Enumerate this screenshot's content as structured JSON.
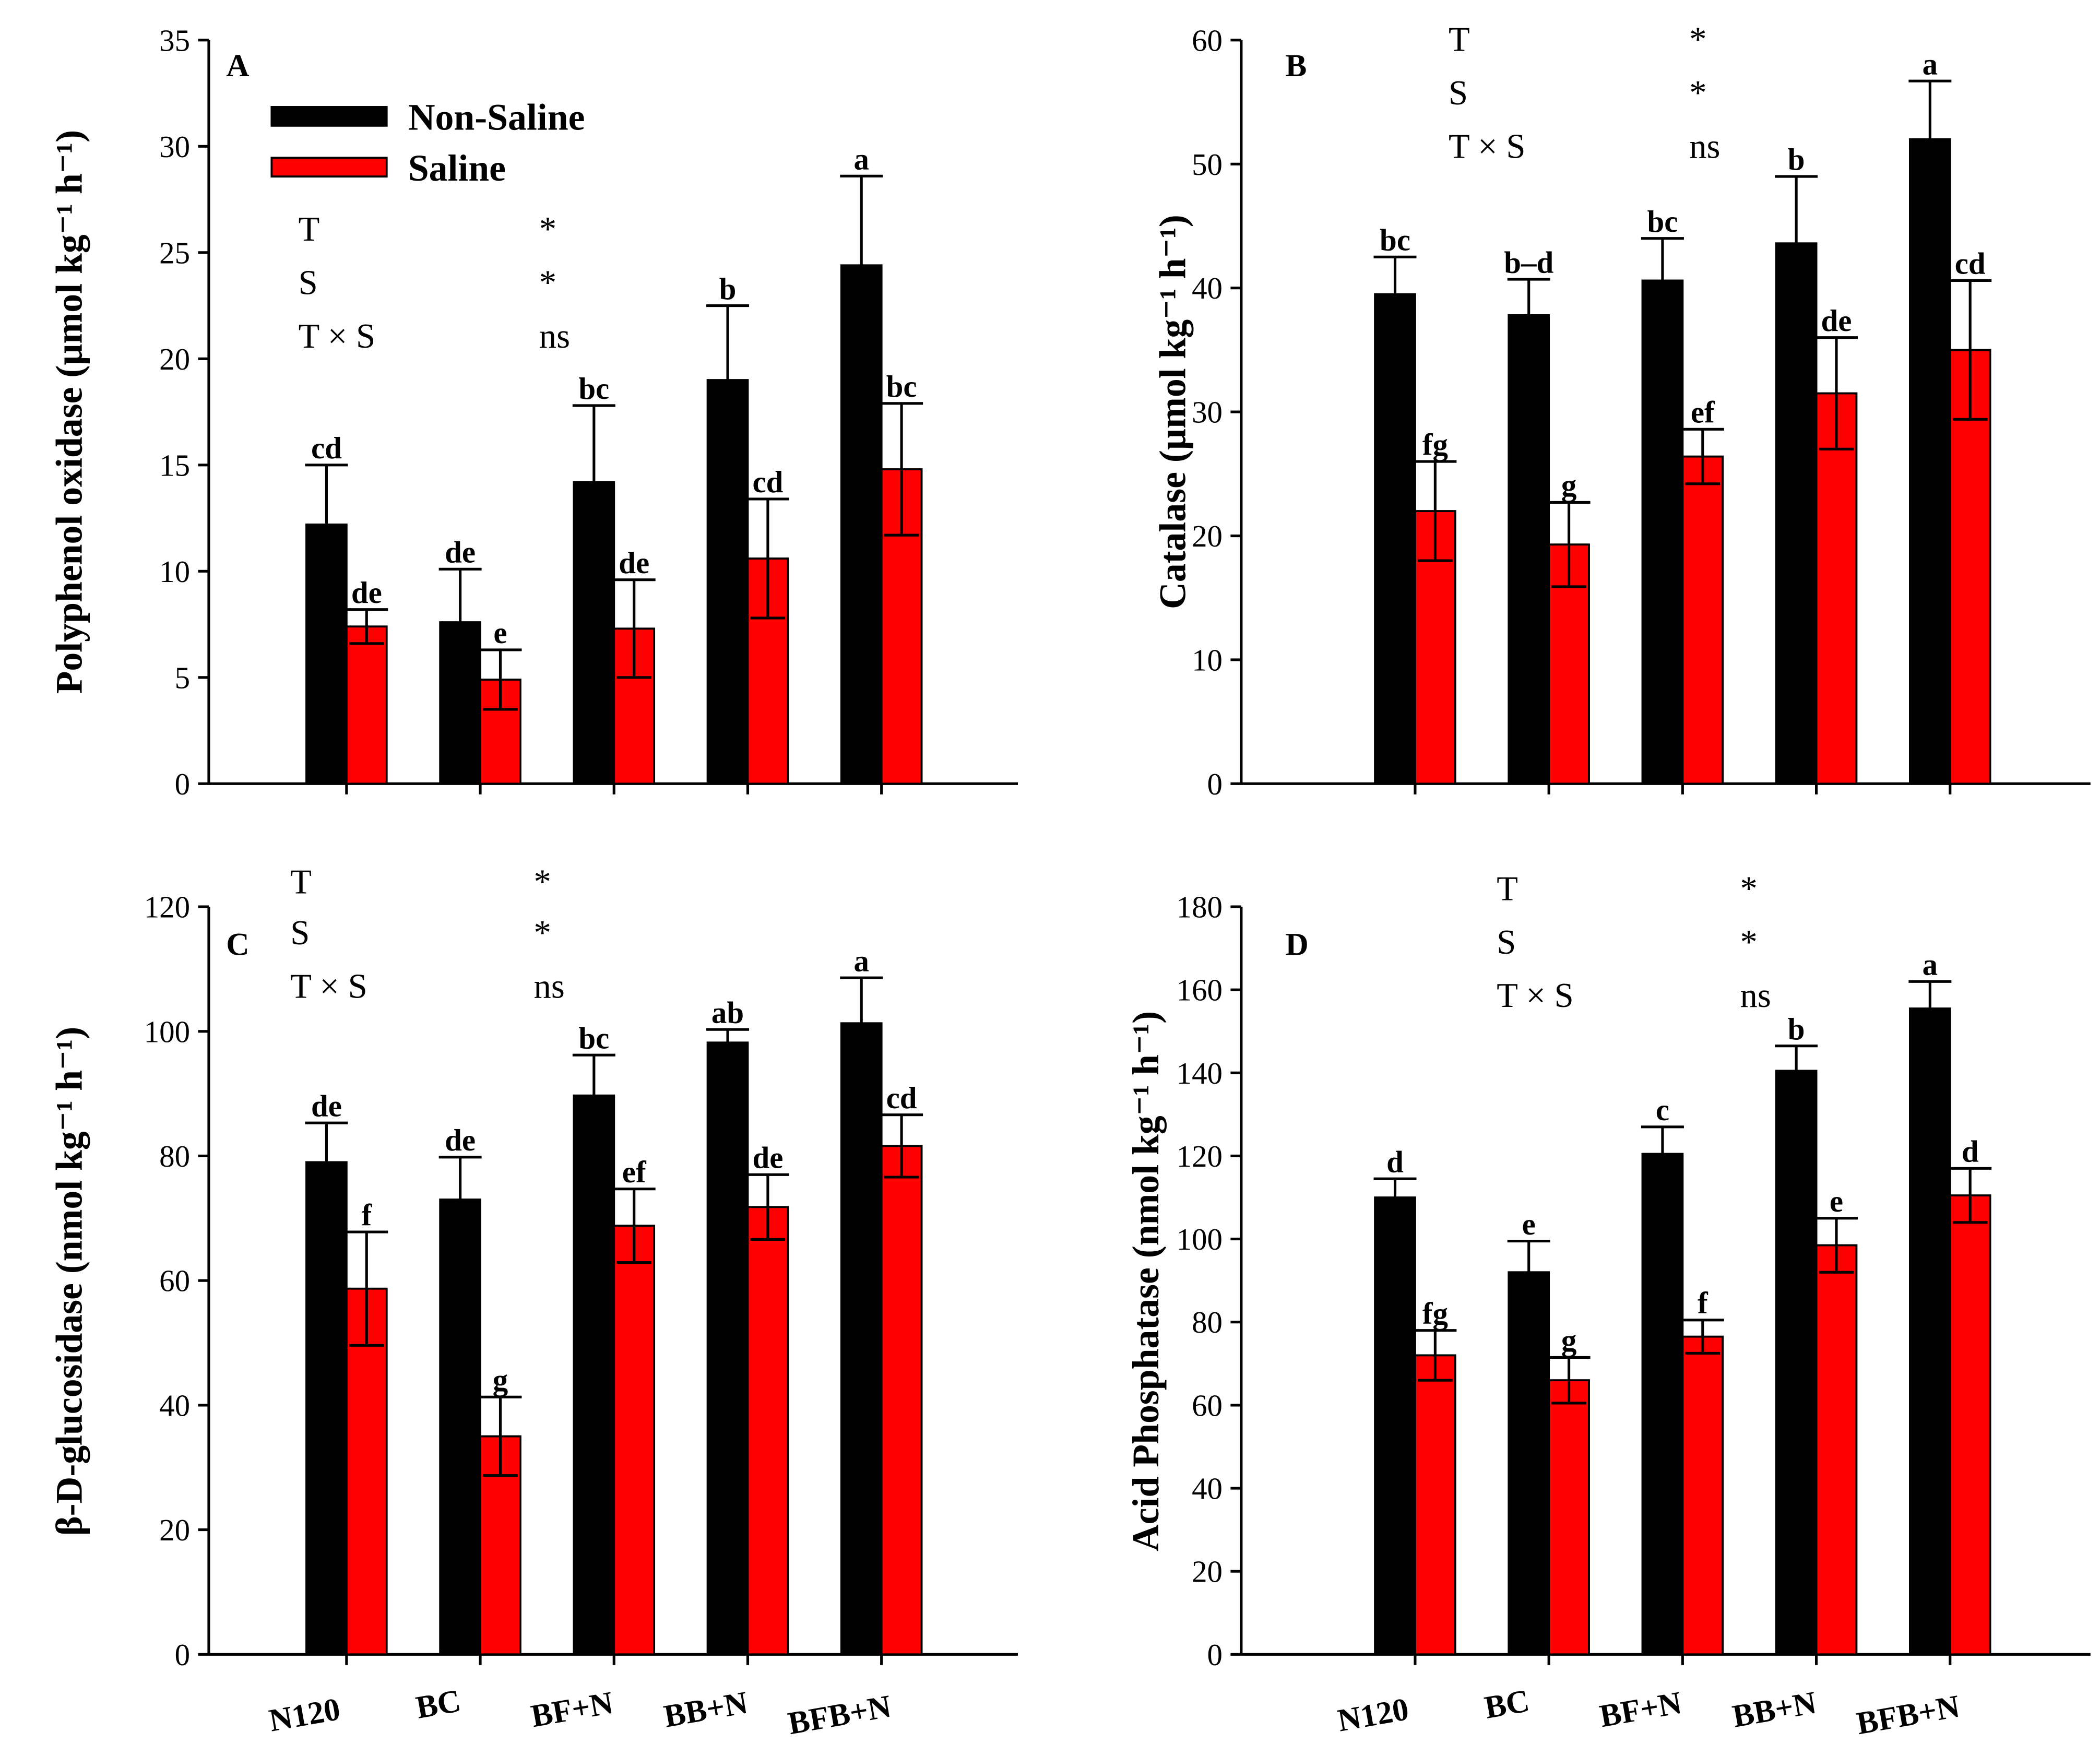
{
  "legend": {
    "series": [
      "Non-Saline",
      "Saline"
    ],
    "colors": [
      "#000000",
      "#ff0000"
    ]
  },
  "categories": [
    "N120",
    "BC",
    "BF+N",
    "BB+N",
    "BFB+N"
  ],
  "stats_labels": [
    "T",
    "S",
    "T × S"
  ],
  "stats_values": [
    "*",
    "*",
    "ns"
  ],
  "chart_data": [
    {
      "type": "bar",
      "panel": "A",
      "ylabel": "Polyphenol oxidase (µmol kg⁻¹ h⁻¹)",
      "ylim": [
        0,
        35
      ],
      "yticks": [
        0,
        5,
        10,
        15,
        20,
        25,
        30,
        35
      ],
      "series": [
        {
          "name": "Non-Saline",
          "values": [
            12.2,
            7.6,
            14.2,
            19.0,
            24.4
          ],
          "err": [
            2.8,
            2.5,
            3.6,
            3.5,
            4.2
          ],
          "letters": [
            "cd",
            "de",
            "bc",
            "b",
            "a"
          ]
        },
        {
          "name": "Saline",
          "values": [
            7.4,
            4.9,
            7.3,
            10.6,
            14.8
          ],
          "err": [
            0.8,
            1.4,
            2.3,
            2.8,
            3.1
          ],
          "letters": [
            "de",
            "e",
            "de",
            "cd",
            "bc"
          ]
        }
      ]
    },
    {
      "type": "bar",
      "panel": "B",
      "ylabel": "Catalase (µmol kg⁻¹ h⁻¹)",
      "ylim": [
        0,
        60
      ],
      "yticks": [
        0,
        10,
        20,
        30,
        40,
        50,
        60
      ],
      "series": [
        {
          "name": "Non-Saline",
          "values": [
            39.5,
            37.8,
            40.6,
            43.6,
            52.0
          ],
          "err": [
            3.0,
            2.9,
            3.4,
            5.4,
            4.7
          ],
          "letters": [
            "bc",
            "b–d",
            "bc",
            "b",
            "a"
          ]
        },
        {
          "name": "Saline",
          "values": [
            22.0,
            19.3,
            26.4,
            31.5,
            35.0
          ],
          "err": [
            4.0,
            3.4,
            2.2,
            4.5,
            5.6
          ],
          "letters": [
            "fg",
            "g",
            "ef",
            "de",
            "cd"
          ]
        }
      ]
    },
    {
      "type": "bar",
      "panel": "C",
      "ylabel": "β-D-glucosidase (nmol kg⁻¹ h⁻¹)",
      "ylim": [
        0,
        120
      ],
      "yticks": [
        0,
        20,
        40,
        60,
        80,
        100,
        120
      ],
      "series": [
        {
          "name": "Non-Saline",
          "values": [
            79.0,
            73.0,
            89.7,
            98.2,
            101.3
          ],
          "err": [
            6.3,
            6.8,
            6.5,
            2.1,
            7.3
          ],
          "letters": [
            "de",
            "de",
            "bc",
            "ab",
            "a"
          ]
        },
        {
          "name": "Saline",
          "values": [
            58.7,
            35.0,
            68.8,
            71.8,
            81.6
          ],
          "err": [
            9.1,
            6.3,
            5.9,
            5.2,
            5.0
          ],
          "letters": [
            "f",
            "g",
            "ef",
            "de",
            "cd"
          ]
        }
      ]
    },
    {
      "type": "bar",
      "panel": "D",
      "ylabel": "Acid Phosphatase (nmol kg⁻¹ h⁻¹)",
      "ylim": [
        0,
        180
      ],
      "yticks": [
        0,
        20,
        40,
        60,
        80,
        100,
        120,
        140,
        160,
        180
      ],
      "series": [
        {
          "name": "Non-Saline",
          "values": [
            110.0,
            92.0,
            120.5,
            140.5,
            155.5
          ],
          "err": [
            4.5,
            7.5,
            6.5,
            6.0,
            6.5
          ],
          "letters": [
            "d",
            "e",
            "c",
            "b",
            "a"
          ]
        },
        {
          "name": "Saline",
          "values": [
            72.0,
            66.0,
            76.5,
            98.5,
            110.5
          ],
          "err": [
            6.0,
            5.5,
            4.0,
            6.5,
            6.5
          ],
          "letters": [
            "fg",
            "g",
            "f",
            "e",
            "d"
          ]
        }
      ]
    }
  ]
}
